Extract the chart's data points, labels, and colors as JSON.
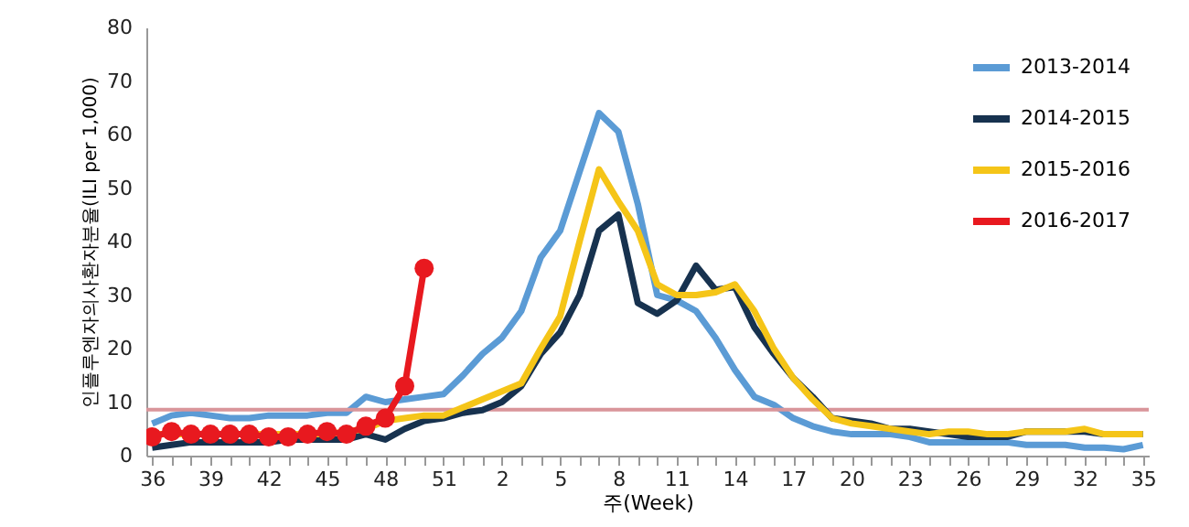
{
  "chart_data": {
    "type": "line",
    "xlabel": "주(Week)",
    "ylabel": "인플루엔자의사환자분율(ILI per 1,000)",
    "categories": [
      "36",
      null,
      null,
      "39",
      null,
      null,
      "42",
      null,
      null,
      "45",
      null,
      null,
      "48",
      null,
      null,
      "51",
      null,
      null,
      "2",
      null,
      null,
      "5",
      null,
      null,
      "8",
      null,
      null,
      "11",
      null,
      null,
      "14",
      null,
      null,
      "17",
      null,
      null,
      "20",
      null,
      null,
      "23",
      null,
      null,
      "26",
      null,
      null,
      "29",
      null,
      null,
      "32",
      null,
      null,
      "35"
    ],
    "series": [
      {
        "name": "2013-2014",
        "color": "#5b9bd5",
        "values": [
          6,
          7.5,
          8,
          7.5,
          7,
          7,
          7.5,
          7.5,
          7.5,
          8,
          8,
          11,
          10,
          10.5,
          11,
          11.5,
          15,
          19,
          22,
          27,
          37,
          42,
          53,
          64,
          60.5,
          47,
          30,
          29,
          27,
          22,
          16,
          11,
          9.5,
          7,
          5.5,
          4.5,
          4,
          4,
          4,
          3.5,
          2.5,
          2.5,
          2.5,
          2.5,
          2.5,
          2,
          2,
          2,
          1.5,
          1.5,
          1.2,
          2
        ]
      },
      {
        "name": "2014-2015",
        "color": "#17324f",
        "values": [
          1.5,
          2,
          2.5,
          2.5,
          2.5,
          2.5,
          2.5,
          3,
          3,
          3,
          3,
          4,
          3,
          5,
          6.5,
          7,
          8,
          8.5,
          10,
          13,
          19,
          23,
          30,
          42,
          45,
          28.5,
          26.5,
          29,
          35.5,
          31,
          31.5,
          24,
          19,
          14.5,
          11,
          7,
          6.5,
          6,
          5,
          5,
          4.5,
          4,
          3.5,
          3.5,
          3.5,
          4.5,
          4.5,
          4.5,
          4.5,
          4,
          4,
          4
        ]
      },
      {
        "name": "2015-2016",
        "color": "#f5c518",
        "values": [
          4,
          4,
          4,
          4,
          4,
          4,
          4,
          4,
          4,
          4,
          4.5,
          5,
          6.5,
          7,
          7.5,
          7.5,
          9,
          10.5,
          12,
          13.5,
          20,
          26,
          40,
          53.5,
          47.5,
          42,
          32,
          30,
          30,
          30.5,
          32,
          27,
          20,
          14.5,
          10.5,
          7,
          6,
          5.5,
          5,
          4.5,
          4,
          4.5,
          4.5,
          4,
          4,
          4.5,
          4.5,
          4.5,
          5,
          4,
          4,
          4
        ]
      },
      {
        "name": "2016-2017",
        "color": "#e8191f",
        "marker": "circle",
        "values": [
          3.5,
          4.5,
          4,
          4,
          4,
          4,
          3.5,
          3.5,
          4,
          4.5,
          4,
          5.5,
          7,
          13,
          35,
          null,
          null,
          null,
          null,
          null,
          null,
          null,
          null,
          null,
          null,
          null,
          null,
          null,
          null,
          null,
          null,
          null,
          null,
          null,
          null,
          null,
          null,
          null,
          null,
          null,
          null,
          null,
          null,
          null,
          null,
          null,
          null,
          null,
          null,
          null,
          null,
          null
        ]
      }
    ],
    "ylim": [
      0,
      80
    ],
    "yticks": [
      0,
      10,
      20,
      30,
      40,
      50,
      60,
      70,
      80
    ],
    "ref_lines": [
      {
        "axis": "y",
        "value": 8.6,
        "color": "#d9959a"
      }
    ],
    "legend": "top right",
    "grid": false
  }
}
